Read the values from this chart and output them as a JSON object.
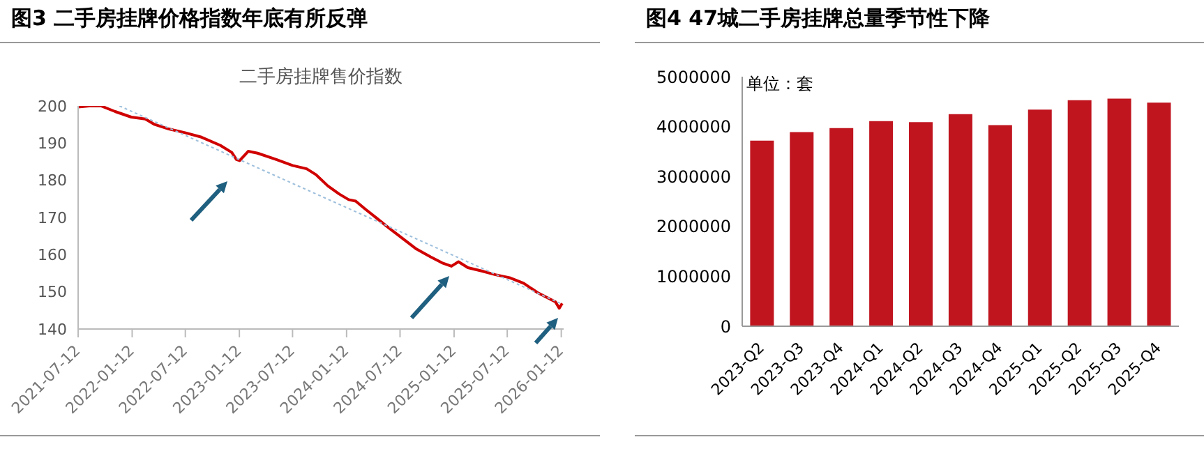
{
  "chart_data": [
    {
      "type": "line",
      "title": "图3  二手房挂牌价格指数年底有所反弹",
      "subtitle": "二手房挂牌售价指数",
      "xlim": [
        "2021-07-12",
        "2026-01-20"
      ],
      "xticks": [
        "2021-07-12",
        "2022-01-12",
        "2022-07-12",
        "2023-01-12",
        "2023-07-12",
        "2024-01-12",
        "2024-07-12",
        "2025-01-12",
        "2025-07-12",
        "2026-01-12"
      ],
      "ylim": [
        140,
        200
      ],
      "yticks": [
        140,
        150,
        160,
        170,
        180,
        190,
        200
      ],
      "grid": false,
      "x": [
        "2021-07-12",
        "2021-08-19",
        "2021-09-28",
        "2021-11-15",
        "2022-01-09",
        "2022-02-26",
        "2022-03-30",
        "2022-05-17",
        "2022-07-11",
        "2022-09-05",
        "2022-11-08",
        "2022-12-17",
        "2023-01-02",
        "2023-01-13",
        "2023-02-11",
        "2023-03-15",
        "2023-05-18",
        "2023-07-12",
        "2023-08-29",
        "2023-09-30",
        "2023-11-09",
        "2023-12-18",
        "2024-01-19",
        "2024-02-12",
        "2024-03-15",
        "2024-04-24",
        "2024-06-02",
        "2024-07-20",
        "2024-09-06",
        "2024-10-24",
        "2024-12-02",
        "2025-01-03",
        "2025-01-27",
        "2025-02-28",
        "2025-04-16",
        "2025-06-02",
        "2025-07-20",
        "2025-09-06",
        "2025-10-23",
        "2025-11-24",
        "2025-12-23",
        "2026-01-05",
        "2026-01-15"
      ],
      "series": [
        {
          "type": "line",
          "color": "#d00000",
          "values": [
            199.7,
            200,
            200,
            198.5,
            197,
            196.5,
            195,
            193.8,
            192.8,
            191.6,
            189.4,
            187.5,
            185.6,
            185.3,
            187.8,
            187.3,
            185.6,
            184,
            183.1,
            181.5,
            178.5,
            176.3,
            174.8,
            174.4,
            172.3,
            169.8,
            167.3,
            164.4,
            161.5,
            159.4,
            157.8,
            156.9,
            158.1,
            156.5,
            155.6,
            154.6,
            153.8,
            152.3,
            149.8,
            148.5,
            147.3,
            145.6,
            146.9
          ]
        },
        {
          "type": "line",
          "color": "#9dbfdc",
          "line_style": "dotted",
          "x": [
            "2021-11-30",
            "2026-01-12"
          ],
          "values": [
            200,
            146.8
          ]
        }
      ]
    },
    {
      "type": "bar",
      "title": "图4  47城二手房挂牌总量季节性下降",
      "annotations": [
        "单位：套"
      ],
      "categories": [
        "2023-Q2",
        "2023-Q3",
        "2023-Q4",
        "2024-Q1",
        "2024-Q2",
        "2024-Q3",
        "2024-Q4",
        "2025-Q1",
        "2025-Q2",
        "2025-Q3",
        "2025-Q4"
      ],
      "values": [
        3720000,
        3890000,
        3970000,
        4110000,
        4090000,
        4250000,
        4030000,
        4340000,
        4530000,
        4560000,
        4480000
      ],
      "color": "#c0141f",
      "ylim": [
        0,
        5000000
      ],
      "yticks": [
        0,
        1000000,
        2000000,
        3000000,
        4000000,
        5000000
      ],
      "grid": false
    }
  ]
}
